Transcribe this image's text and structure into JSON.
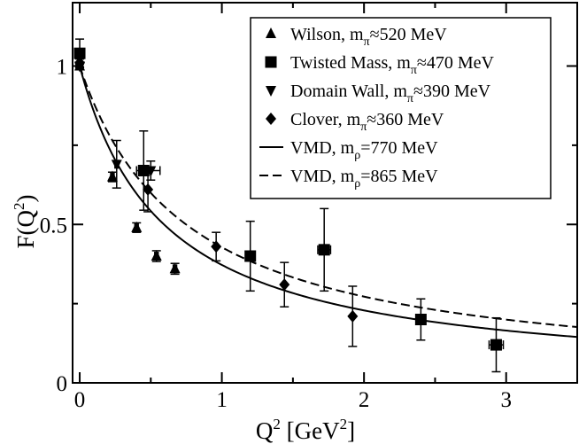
{
  "chart_data": {
    "type": "scatter",
    "xlabel": {
      "main": "Q",
      "sup": "2",
      "unit_open": " [GeV",
      "unit_sup": "2",
      "unit_close": "]"
    },
    "ylabel": {
      "main": "F(Q",
      "sup": "2",
      "close": ")"
    },
    "xlim": [
      -0.05,
      3.5
    ],
    "ylim": [
      0,
      1.2
    ],
    "xticks": [
      0,
      1,
      2,
      3
    ],
    "xtick_labels": [
      "0",
      "1",
      "2",
      "3"
    ],
    "yticks": [
      0,
      0.5,
      1
    ],
    "ytick_labels": [
      "0",
      "0.5",
      "1"
    ],
    "legend_position": "top-right",
    "series": [
      {
        "name": "Wilson",
        "legend": {
          "pre": "Wilson, m",
          "sub": "π",
          "post": "≈520 MeV"
        },
        "marker": "triangle-up",
        "points": [
          {
            "x": 0.0,
            "y": 1.0,
            "yerr": 0.005,
            "xerr": 0.0
          },
          {
            "x": 0.23,
            "y": 0.65,
            "yerr": 0.015,
            "xerr": 0.012
          },
          {
            "x": 0.4,
            "y": 0.49,
            "yerr": 0.015,
            "xerr": 0.012
          },
          {
            "x": 0.54,
            "y": 0.4,
            "yerr": 0.017,
            "xerr": 0.012
          },
          {
            "x": 0.67,
            "y": 0.36,
            "yerr": 0.017,
            "xerr": 0.012
          }
        ]
      },
      {
        "name": "Twisted Mass",
        "legend": {
          "pre": "Twisted Mass, m",
          "sub": "π",
          "post": "≈470 MeV"
        },
        "marker": "square",
        "points": [
          {
            "x": 0.0,
            "y": 1.04,
            "yerr": 0.045,
            "xerr": 0.0
          },
          {
            "x": 0.45,
            "y": 0.67,
            "yerr": 0.125,
            "xerr": 0.05
          },
          {
            "x": 1.2,
            "y": 0.4,
            "yerr": 0.11,
            "xerr": 0.0
          },
          {
            "x": 1.72,
            "y": 0.42,
            "yerr": 0.13,
            "xerr": 0.045
          },
          {
            "x": 2.4,
            "y": 0.2,
            "yerr": 0.065,
            "xerr": 0.0
          },
          {
            "x": 2.93,
            "y": 0.12,
            "yerr": 0.085,
            "xerr": 0.05
          }
        ]
      },
      {
        "name": "Domain Wall",
        "legend": {
          "pre": "Domain Wall, m",
          "sub": "π",
          "post": "≈390 MeV"
        },
        "marker": "triangle-down",
        "points": [
          {
            "x": 0.0,
            "y": 1.0,
            "yerr": 0.012,
            "xerr": 0.0
          },
          {
            "x": 0.26,
            "y": 0.69,
            "yerr": 0.075,
            "xerr": 0.012
          },
          {
            "x": 0.5,
            "y": 0.67,
            "yerr": 0.03,
            "xerr": 0.065
          }
        ]
      },
      {
        "name": "Clover",
        "legend": {
          "pre": "Clover, m",
          "sub": "π",
          "post": "≈360 MeV"
        },
        "marker": "diamond",
        "points": [
          {
            "x": 0.0,
            "y": 1.01,
            "yerr": 0.012,
            "xerr": 0.0
          },
          {
            "x": 0.48,
            "y": 0.61,
            "yerr": 0.07,
            "xerr": 0.0
          },
          {
            "x": 0.96,
            "y": 0.43,
            "yerr": 0.045,
            "xerr": 0.0
          },
          {
            "x": 1.44,
            "y": 0.31,
            "yerr": 0.07,
            "xerr": 0.0
          },
          {
            "x": 1.92,
            "y": 0.21,
            "yerr": 0.095,
            "xerr": 0.0
          }
        ]
      }
    ],
    "curves": [
      {
        "name": "VMD 770",
        "legend": {
          "pre": "VMD, m",
          "sub": "ρ",
          "post": "=770 MeV"
        },
        "mass_gev": 0.77,
        "style": "solid",
        "x_range": [
          0,
          3.5
        ]
      },
      {
        "name": "VMD 865",
        "legend": {
          "pre": "VMD, m",
          "sub": "ρ",
          "post": "=865 MeV"
        },
        "mass_gev": 0.865,
        "style": "dashed",
        "x_range": [
          0,
          3.5
        ]
      }
    ]
  }
}
